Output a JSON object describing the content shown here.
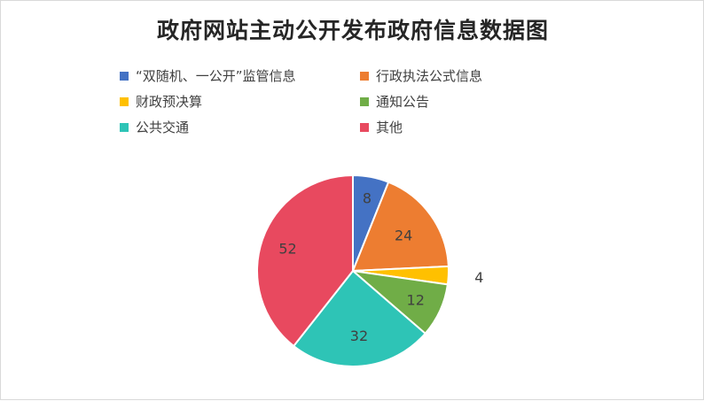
{
  "chart_data": {
    "type": "pie",
    "title": "政府网站主动公开发布政府信息数据图",
    "categories": [
      "“双随机、一公开”监管信息",
      "行政执法公式信息",
      "财政预决算",
      "通知公告",
      "公共交通",
      "其他"
    ],
    "values": [
      8,
      24,
      4,
      12,
      32,
      52
    ],
    "colors": [
      "#4472c4",
      "#ed7d31",
      "#ffc000",
      "#70ad47",
      "#2ec4b6",
      "#e8495f"
    ],
    "legend_position": "top"
  }
}
